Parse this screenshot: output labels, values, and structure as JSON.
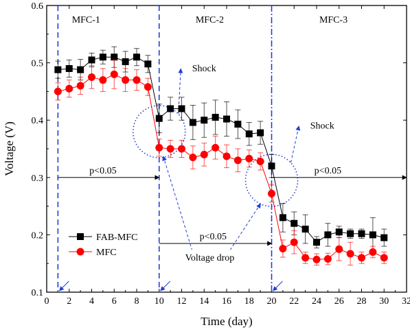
{
  "chart_data": {
    "type": "line",
    "xlabel": "Time (day)",
    "ylabel": "Voltage (V)",
    "xlim": [
      0,
      32
    ],
    "ylim": [
      0.1,
      0.6
    ],
    "x_ticks": [
      0,
      2,
      4,
      6,
      8,
      10,
      12,
      14,
      16,
      18,
      20,
      22,
      24,
      26,
      28,
      30,
      32
    ],
    "y_ticks": [
      0.1,
      0.2,
      0.3,
      0.4,
      0.5,
      0.6
    ],
    "legend_position": "lower-left",
    "colors": {
      "fab_mfc": "#000000",
      "mfc": "#ff0000",
      "annotations": "#1f3fd6"
    },
    "series": [
      {
        "name": "FAB-MFC",
        "color": "#000000",
        "marker": "square",
        "x": [
          1,
          2,
          3,
          4,
          5,
          6,
          7,
          8,
          9,
          10,
          11,
          12,
          13,
          14,
          15,
          16,
          17,
          18,
          19,
          20,
          21,
          22,
          23,
          24,
          25,
          26,
          27,
          28,
          29,
          30
        ],
        "values": [
          0.488,
          0.49,
          0.488,
          0.505,
          0.51,
          0.51,
          0.502,
          0.51,
          0.498,
          0.403,
          0.42,
          0.42,
          0.396,
          0.4,
          0.405,
          0.402,
          0.393,
          0.376,
          0.378,
          0.32,
          0.23,
          0.22,
          0.21,
          0.187,
          0.2,
          0.205,
          0.202,
          0.202,
          0.2,
          0.195
        ],
        "errors": [
          0.015,
          0.015,
          0.018,
          0.012,
          0.012,
          0.018,
          0.018,
          0.015,
          0.015,
          0.025,
          0.02,
          0.02,
          0.03,
          0.03,
          0.03,
          0.03,
          0.025,
          0.02,
          0.02,
          0.02,
          0.025,
          0.02,
          0.025,
          0.01,
          0.02,
          0.01,
          0.008,
          0.008,
          0.03,
          0.015
        ]
      },
      {
        "name": "MFC",
        "color": "#ff0000",
        "marker": "circle",
        "x": [
          1,
          2,
          3,
          4,
          5,
          6,
          7,
          8,
          9,
          10,
          11,
          12,
          13,
          14,
          15,
          16,
          17,
          18,
          19,
          20,
          21,
          22,
          23,
          24,
          25,
          26,
          27,
          28,
          29,
          30
        ],
        "values": [
          0.45,
          0.455,
          0.46,
          0.475,
          0.47,
          0.48,
          0.47,
          0.47,
          0.458,
          0.352,
          0.35,
          0.35,
          0.335,
          0.34,
          0.352,
          0.337,
          0.33,
          0.333,
          0.328,
          0.272,
          0.176,
          0.187,
          0.16,
          0.157,
          0.158,
          0.175,
          0.167,
          0.16,
          0.17,
          0.16
        ],
        "errors": [
          0.015,
          0.015,
          0.015,
          0.02,
          0.02,
          0.025,
          0.02,
          0.018,
          0.015,
          0.015,
          0.015,
          0.015,
          0.02,
          0.02,
          0.02,
          0.02,
          0.02,
          0.015,
          0.015,
          0.015,
          0.015,
          0.02,
          0.01,
          0.01,
          0.01,
          0.02,
          0.02,
          0.01,
          0.01,
          0.01
        ]
      }
    ],
    "regions": [
      {
        "label": "MFC-1",
        "label_x": 3.5
      },
      {
        "label": "MFC-2",
        "label_x": 14.5
      },
      {
        "label": "MFC-3",
        "label_x": 25.5
      }
    ],
    "region_boundaries": [
      1,
      10,
      20
    ],
    "significance": [
      {
        "label": "p<0.05",
        "x_start": 1,
        "x_end": 10,
        "y": 0.3,
        "label_x": 5
      },
      {
        "label": "p<0.05",
        "x_start": 10,
        "x_end": 20,
        "y": 0.185,
        "label_x": 14.8
      },
      {
        "label": "p<0.05",
        "x_start": 20,
        "x_end": 32,
        "y": 0.3,
        "label_x": 25
      }
    ],
    "shock_events": [
      {
        "label": "Shock",
        "circle_x": 10,
        "circle_y": 0.38,
        "label_x": 14,
        "label_y": 0.485
      },
      {
        "label": "Shock",
        "circle_x": 20,
        "circle_y": 0.295,
        "label_x": 24.5,
        "label_y": 0.385
      }
    ],
    "voltage_drop": {
      "label": "Voltage drop",
      "label_x": 14.5,
      "label_y": 0.155
    }
  }
}
